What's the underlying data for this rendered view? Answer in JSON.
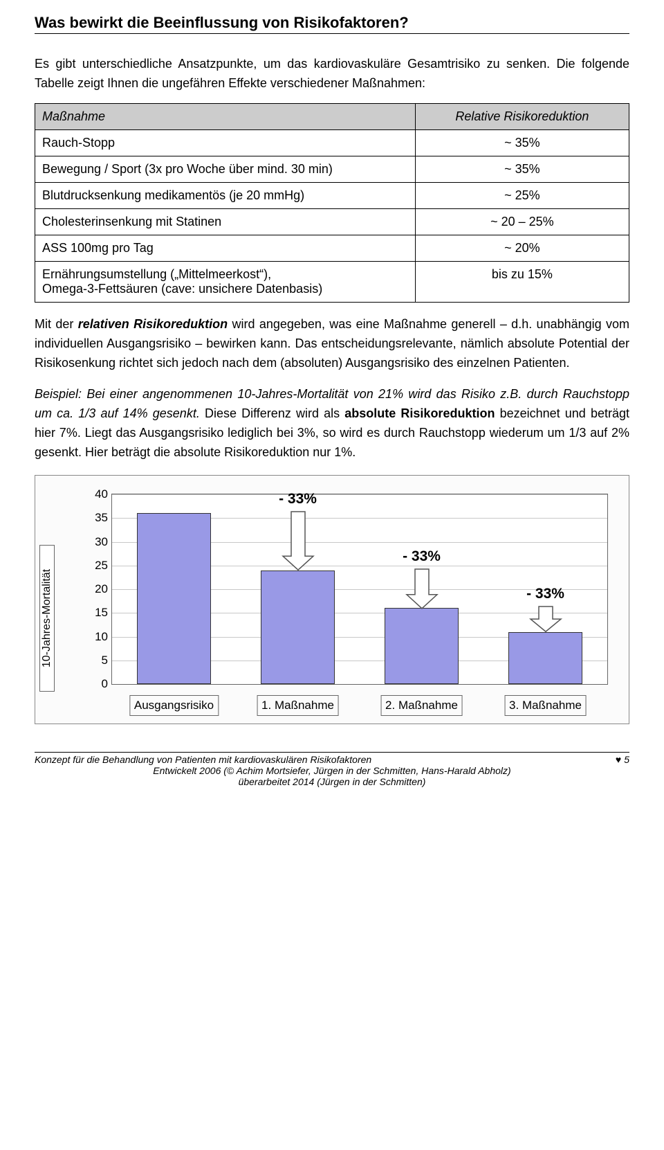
{
  "title": "Was bewirkt die Beeinflussung von Risikofaktoren?",
  "intro": "Es gibt unterschiedliche Ansatzpunkte, um das kardiovaskuläre Gesamtrisiko zu senken. Die folgende Tabelle zeigt Ihnen die ungefähren Effekte verschiedener Maßnahmen:",
  "table": {
    "head_left": "Maßnahme",
    "head_right": "Relative Risikoreduktion",
    "rows": [
      {
        "l": "Rauch-Stopp",
        "r": "~ 35%"
      },
      {
        "l": "Bewegung / Sport (3x pro Woche über mind. 30 min)",
        "r": "~ 35%"
      },
      {
        "l": "Blutdrucksenkung medikamentös (je 20 mmHg)",
        "r": "~ 25%"
      },
      {
        "l": "Cholesterinsenkung mit Statinen",
        "r": "~ 20 – 25%"
      },
      {
        "l": "ASS 100mg pro Tag",
        "r": "~ 20%"
      },
      {
        "l": "Ernährungsumstellung („Mittelmeerkost“),\nOmega-3-Fettsäuren (cave: unsichere Datenbasis)",
        "r": "bis zu 15%"
      }
    ]
  },
  "para1": {
    "a": "Mit der ",
    "b": "relativen Risikoreduktion",
    "c": " wird angegeben, was eine Maßnahme generell – d.h. unabhängig vom individuellen Ausgangsrisiko – bewirken kann. Das entscheidungsrelevante, nämlich absolute Potential der Risikosenkung richtet sich jedoch nach dem (absoluten) Ausgangsrisiko des einzelnen Patienten."
  },
  "para2": {
    "a": "Beispiel: Bei einer angenommenen 10-Jahres-Mortalität von 21% wird das Risiko z.B. durch Rauchstopp um ca. 1/3 auf 14% gesenkt.",
    "b": " Diese Differenz wird als ",
    "c": "absolute Risikoreduktion",
    "d": " bezeichnet und beträgt hier 7%. Liegt das Ausgangsrisiko lediglich bei 3%, so wird es durch Rauchstopp wiederum um 1/3 auf 2% gesenkt. Hier beträgt die absolute Risikoreduktion nur 1%."
  },
  "chart": {
    "type": "bar",
    "ylabel": "10-Jahres-Mortalität",
    "ymax": 40,
    "ytick_step": 5,
    "yticks": [
      0,
      5,
      10,
      15,
      20,
      25,
      30,
      35,
      40
    ],
    "bar_color": "#9999e6",
    "bar_border": "#333333",
    "grid_color": "#c8c8c8",
    "plot_border": "#666666",
    "background": "#fbfbfb",
    "plot_background": "#ffffff",
    "bars": [
      {
        "label": "Ausgangsrisiko",
        "value": 36
      },
      {
        "label": "1. Maßnahme",
        "value": 24
      },
      {
        "label": "2. Maßnahme",
        "value": 16
      },
      {
        "label": "3. Maßnahme",
        "value": 11
      }
    ],
    "arrows": [
      {
        "between": [
          0,
          1
        ],
        "label": "- 33%"
      },
      {
        "between": [
          1,
          2
        ],
        "label": "- 33%"
      },
      {
        "between": [
          2,
          3
        ],
        "label": "- 33%"
      }
    ],
    "arrow_label_fontsize": 21,
    "arrow_label_fontweight": "bold",
    "tick_fontsize": 17,
    "cat_fontsize": 17
  },
  "footer": {
    "left": "Konzept für die Behandlung von Patienten mit kardiovaskulären Risikofaktoren",
    "page": "5",
    "line2": "Entwickelt 2006 (© Achim Mortsiefer, Jürgen in der Schmitten, Hans-Harald Abholz)",
    "line3": "überarbeitet 2014 (Jürgen in der Schmitten)"
  }
}
